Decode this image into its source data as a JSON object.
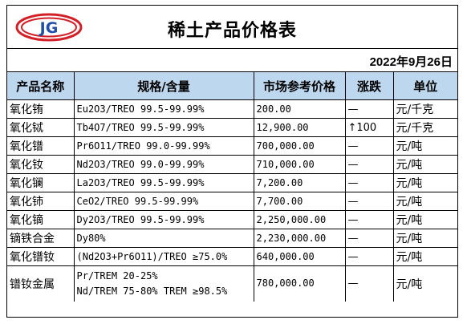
{
  "title": "稀土产品价格表",
  "logo": {
    "text": "JG",
    "icon": "company-logo-icon",
    "colors": {
      "ring": "#d32027",
      "text": "#1f4fa8"
    }
  },
  "date": "2022年9月26日",
  "header_color": "#bdd7ee",
  "columns": [
    "产品名称",
    "规格/含量",
    "市场参考价格",
    "涨跌",
    "单位"
  ],
  "rows": [
    {
      "name": "氧化铕",
      "spec": "Eu2O3/TREO 99.5-99.99%",
      "price": "200.00",
      "change": "—",
      "unit": "元/千克"
    },
    {
      "name": "氧化铽",
      "spec": "Tb4O7/TREO 99.5-99.99%",
      "price": "12,900.00",
      "change": "↑100",
      "unit": "元/千克"
    },
    {
      "name": "氧化镨",
      "spec": "Pr6O11/TREO 99.0-99.99%",
      "price": "700,000.00",
      "change": "—",
      "unit": "元/吨"
    },
    {
      "name": "氧化钕",
      "spec": "Nd2O3/TREO 99.0-99.99%",
      "price": "710,000.00",
      "change": "—",
      "unit": "元/吨"
    },
    {
      "name": "氧化镧",
      "spec": "La2O3/TREO 99.5-99.99%",
      "price": "7,200.00",
      "change": "—",
      "unit": "元/吨"
    },
    {
      "name": "氧化铈",
      "spec": "CeO2/TREO 99.5-99.99%",
      "price": "7,700.00",
      "change": "—",
      "unit": "元/吨"
    },
    {
      "name": "氧化镝",
      "spec": "Dy2O3/TREO 99.5-99.99%",
      "price": "2,250,000.00",
      "change": "—",
      "unit": "元/吨"
    },
    {
      "name": "镝铁合金",
      "spec": "Dy80%",
      "price": "2,230,000.00",
      "change": "—",
      "unit": "元/吨"
    },
    {
      "name": "氧化镨钕",
      "spec": "(Nd2O3+Pr6O11)/TREO ≥75.0%",
      "price": "640,000.00",
      "change": "—",
      "unit": "元/吨"
    },
    {
      "name": "镨钕金属",
      "spec": "Pr/TREM 20-25%\nNd/TREM 75-80% TREM ≥98.5%",
      "price": "780,000.00",
      "change": "—",
      "unit": "元/吨"
    }
  ]
}
